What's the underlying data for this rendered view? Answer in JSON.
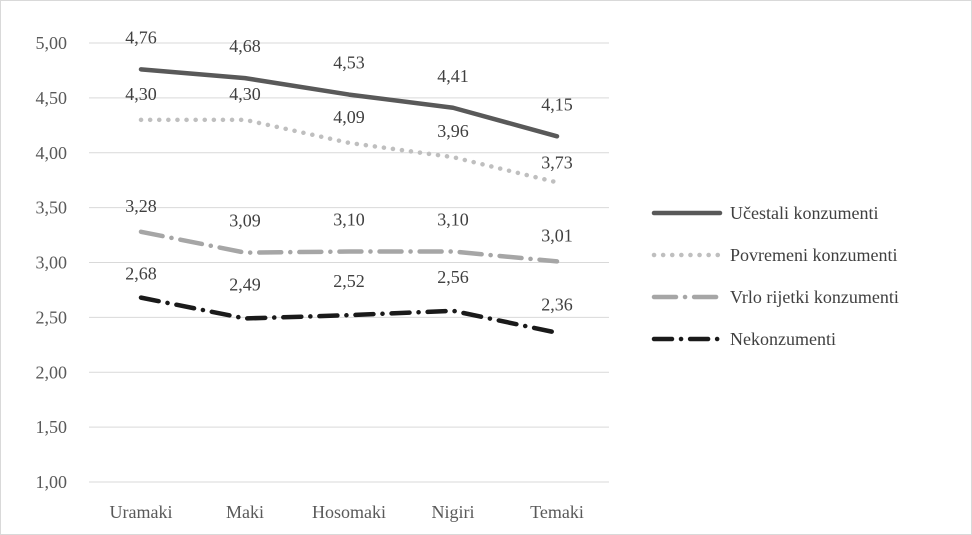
{
  "chart_data": {
    "type": "line",
    "title": "",
    "xlabel": "",
    "ylabel": "",
    "categories": [
      "Uramaki",
      "Maki",
      "Hosomaki",
      "Nigiri",
      "Temaki"
    ],
    "ylim": [
      1.0,
      5.0
    ],
    "yticks": [
      "5,00",
      "4,50",
      "4,00",
      "3,50",
      "3,00",
      "2,50",
      "2,00",
      "1,50",
      "1,00"
    ],
    "grid": true,
    "legend_position": "right",
    "series": [
      {
        "name": "Učestali konzumenti",
        "values": [
          4.76,
          4.68,
          4.53,
          4.41,
          4.15
        ],
        "labels": [
          "4,76",
          "4,68",
          "4,53",
          "4,41",
          "4,15"
        ],
        "color": "#595959",
        "style": "solid"
      },
      {
        "name": "Povremeni konzumenti",
        "values": [
          4.3,
          4.3,
          4.09,
          3.96,
          3.73
        ],
        "labels": [
          "4,30",
          "4,30",
          "4,09",
          "3,96",
          "3,73"
        ],
        "color": "#bfbfbf",
        "style": "dotted"
      },
      {
        "name": "Vrlo rijetki konzumenti",
        "values": [
          3.28,
          3.09,
          3.1,
          3.1,
          3.01
        ],
        "labels": [
          "3,28",
          "3,09",
          "3,10",
          "3,10",
          "3,01"
        ],
        "color": "#a6a6a6",
        "style": "long-dash-dot"
      },
      {
        "name": "Nekonzumenti",
        "values": [
          2.68,
          2.49,
          2.52,
          2.56,
          2.36
        ],
        "labels": [
          "2,68",
          "2,49",
          "2,52",
          "2,56",
          "2,36"
        ],
        "color": "#1a1a1a",
        "style": "dash-dot"
      }
    ]
  }
}
